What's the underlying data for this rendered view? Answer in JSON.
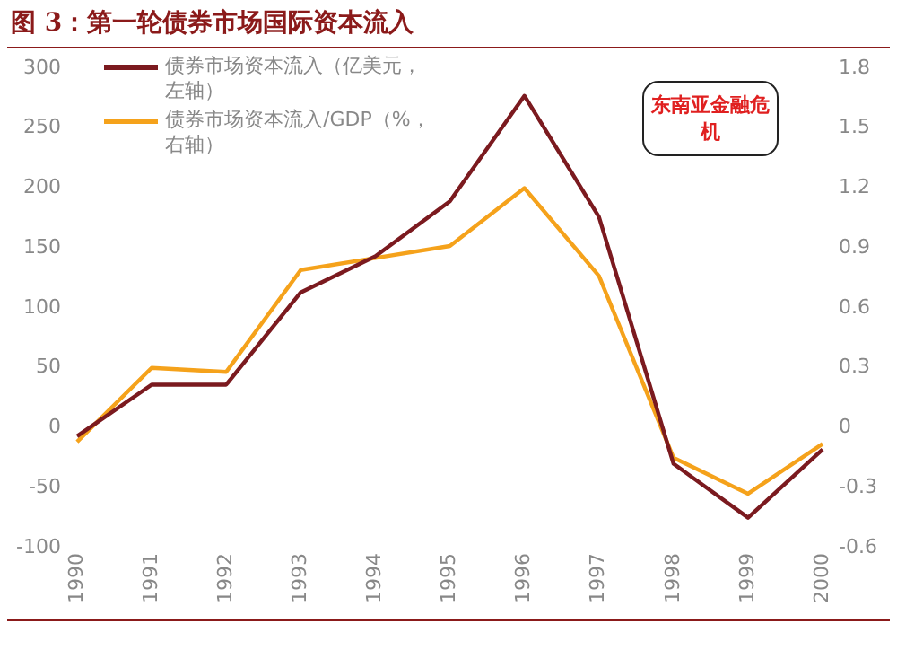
{
  "chart_data": {
    "type": "line",
    "title": "图 3：第一轮债券市场国际资本流入",
    "categories": [
      "1990",
      "1991",
      "1992",
      "1993",
      "1994",
      "1995",
      "1996",
      "1997",
      "1998",
      "1999",
      "2000"
    ],
    "series": [
      {
        "name": "债券市场资本流入（亿美元，左轴）",
        "color": "#7b1a1f",
        "values": [
          -7,
          36,
          36,
          113,
          143,
          189,
          277,
          176,
          -30,
          -75,
          -18
        ]
      },
      {
        "name": "债券市场资本流入/GDP（%，右轴）",
        "color": "#f5a21b",
        "axis": "y2",
        "values": [
          -0.07,
          0.3,
          0.28,
          0.79,
          0.85,
          0.91,
          1.2,
          0.76,
          -0.15,
          -0.33,
          -0.08
        ]
      }
    ],
    "ylim": [
      -100,
      300
    ],
    "yticks": [
      -100,
      -50,
      0,
      50,
      100,
      150,
      200,
      250,
      300
    ],
    "y2lim": [
      -0.6,
      1.8
    ],
    "y2ticks": [
      {
        "value": -0.6,
        "label": "-0.6"
      },
      {
        "value": -0.3,
        "label": "-0.3"
      },
      {
        "value": 0,
        "label": "0"
      },
      {
        "value": 0.3,
        "label": "0.3"
      },
      {
        "value": 0.6,
        "label": "0.6"
      },
      {
        "value": 0.9,
        "label": "0.9"
      },
      {
        "value": 1.2,
        "label": "1.2"
      },
      {
        "value": 1.5,
        "label": "1.5"
      },
      {
        "value": 1.8,
        "label": "1.8"
      }
    ],
    "annotations": [
      "东南亚金融危机"
    ],
    "grid": false,
    "legend": "top left",
    "marker": "none",
    "line_style": "solid"
  }
}
